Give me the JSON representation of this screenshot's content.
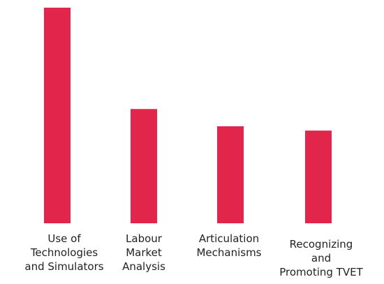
{
  "chart_data": {
    "type": "bar",
    "categories": [
      "Use of\nTechnologies\nand Simulators",
      "Labour\nMarket\nAnalysis",
      "Articulation\nMechanisms",
      "Recognizing\nand\nPromoting TVET"
    ],
    "values": [
      100,
      53,
      45,
      43
    ],
    "color": "#e2264b",
    "ylim": [
      0,
      100
    ]
  }
}
